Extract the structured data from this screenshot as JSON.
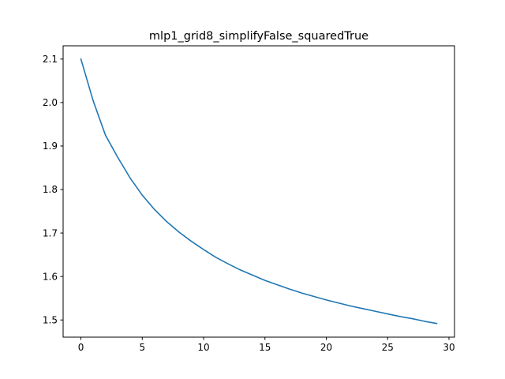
{
  "chart_data": {
    "type": "line",
    "title": "mlp1_grid8_simplifyFalse_squaredTrue",
    "xlabel": "",
    "ylabel": "",
    "xlim": [
      -1.45,
      30.45
    ],
    "ylim": [
      1.4605,
      2.1305
    ],
    "grid": false,
    "x_ticks": [
      0,
      5,
      10,
      15,
      20,
      25,
      30
    ],
    "y_ticks": [
      1.5,
      1.6,
      1.7,
      1.8,
      1.9,
      2.0,
      2.1
    ],
    "x_tick_labels": [
      "0",
      "5",
      "10",
      "15",
      "20",
      "25",
      "30"
    ],
    "y_tick_labels": [
      "1.5",
      "1.6",
      "1.7",
      "1.8",
      "1.9",
      "2.0",
      "2.1"
    ],
    "series": [
      {
        "color": "#1f77b4",
        "x": [
          0,
          1,
          2,
          3,
          4,
          5,
          6,
          7,
          8,
          9,
          10,
          11,
          12,
          13,
          14,
          15,
          16,
          17,
          18,
          19,
          20,
          21,
          22,
          23,
          24,
          25,
          26,
          27,
          28,
          29
        ],
        "values": [
          2.1,
          2.004,
          1.925,
          1.874,
          1.827,
          1.787,
          1.754,
          1.726,
          1.702,
          1.681,
          1.662,
          1.644,
          1.629,
          1.615,
          1.603,
          1.591,
          1.581,
          1.571,
          1.562,
          1.554,
          1.546,
          1.539,
          1.532,
          1.526,
          1.52,
          1.514,
          1.508,
          1.503,
          1.497,
          1.492
        ]
      }
    ]
  }
}
